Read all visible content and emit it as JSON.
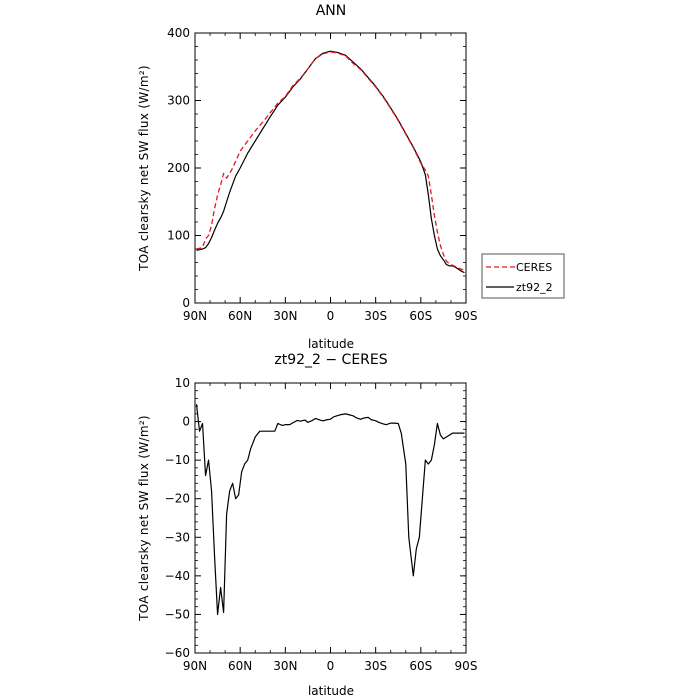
{
  "chart_data": [
    {
      "type": "line",
      "title": "ANN",
      "xlabel": "latitude",
      "ylabel": "TOA clearsky net SW flux (W/m²)",
      "x_tick_labels": [
        "90N",
        "60N",
        "30N",
        "0",
        "30S",
        "60S",
        "90S"
      ],
      "x_tick_values": [
        90,
        60,
        30,
        0,
        -30,
        -60,
        -90
      ],
      "y_tick_labels": [
        "0",
        "100",
        "200",
        "300",
        "400"
      ],
      "xlim": [
        90,
        -90
      ],
      "ylim": [
        0,
        400
      ],
      "legend_position": "right",
      "series": [
        {
          "name": "CERES",
          "color": "#e8161c",
          "style": "dashed",
          "x": [
            89,
            87,
            85,
            83,
            81,
            79,
            77,
            75,
            73,
            71,
            69,
            67,
            65,
            63,
            60,
            55,
            50,
            45,
            40,
            35,
            30,
            25,
            20,
            15,
            10,
            5,
            0,
            -5,
            -10,
            -15,
            -20,
            -25,
            -30,
            -35,
            -40,
            -45,
            -50,
            -55,
            -60,
            -63,
            -65,
            -67,
            -69,
            -71,
            -73,
            -75,
            -77,
            -79,
            -81,
            -83,
            -85,
            -87,
            -89
          ],
          "y": [
            80,
            81,
            82,
            95,
            100,
            115,
            140,
            160,
            175,
            192,
            185,
            192,
            200,
            210,
            225,
            240,
            255,
            268,
            282,
            296,
            306,
            322,
            333,
            347,
            362,
            369,
            372,
            370,
            366,
            355,
            346,
            333,
            320,
            305,
            288,
            270,
            250,
            230,
            207,
            197,
            188,
            160,
            130,
            105,
            85,
            72,
            62,
            58,
            56,
            54,
            52,
            50,
            48
          ]
        },
        {
          "name": "zt92_2",
          "color": "#000000",
          "style": "solid",
          "x": [
            89,
            87,
            85,
            83,
            81,
            79,
            77,
            75,
            73,
            71,
            69,
            67,
            65,
            63,
            60,
            55,
            50,
            45,
            40,
            35,
            30,
            25,
            20,
            15,
            10,
            5,
            0,
            -5,
            -10,
            -15,
            -20,
            -25,
            -30,
            -35,
            -40,
            -45,
            -50,
            -55,
            -60,
            -63,
            -65,
            -67,
            -69,
            -71,
            -73,
            -75,
            -77,
            -79,
            -81,
            -83,
            -85,
            -87,
            -89
          ],
          "y": [
            78,
            79,
            80,
            82,
            88,
            97,
            108,
            118,
            126,
            136,
            150,
            164,
            176,
            188,
            200,
            222,
            240,
            258,
            276,
            293,
            305,
            320,
            332,
            347,
            362,
            370,
            373,
            371,
            367,
            357,
            347,
            334,
            321,
            306,
            289,
            271,
            251,
            231,
            209,
            190,
            160,
            125,
            100,
            80,
            70,
            64,
            57,
            55,
            55,
            53,
            50,
            47,
            45
          ]
        }
      ]
    },
    {
      "type": "line",
      "title": "zt92_2 − CERES",
      "xlabel": "latitude",
      "ylabel": "TOA clearsky net SW flux (W/m²)",
      "x_tick_labels": [
        "90N",
        "60N",
        "30N",
        "0",
        "30S",
        "60S",
        "90S"
      ],
      "x_tick_values": [
        90,
        60,
        30,
        0,
        -30,
        -60,
        -90
      ],
      "y_tick_labels": [
        "10",
        "0",
        "−10",
        "−20",
        "−30",
        "−40",
        "−50",
        "−60"
      ],
      "xlim": [
        90,
        -90
      ],
      "ylim": [
        -60,
        10
      ],
      "series": [
        {
          "name": "zt92_2 − CERES",
          "color": "#000000",
          "style": "solid",
          "x": [
            89,
            87,
            85,
            83,
            81,
            79,
            77,
            75,
            73,
            71,
            69,
            67,
            65,
            63,
            61,
            59,
            57,
            55,
            53,
            50,
            47,
            45,
            42,
            40,
            37,
            35,
            32,
            30,
            27,
            25,
            22,
            20,
            17,
            15,
            12,
            10,
            7,
            5,
            2,
            0,
            -2,
            -5,
            -7,
            -10,
            -12,
            -15,
            -17,
            -20,
            -22,
            -25,
            -27,
            -30,
            -32,
            -35,
            -37,
            -40,
            -42,
            -45,
            -47,
            -50,
            -52,
            -55,
            -57,
            -59,
            -61,
            -63,
            -65,
            -67,
            -69,
            -71,
            -73,
            -75,
            -77,
            -79,
            -81,
            -83,
            -85,
            -87,
            -89
          ],
          "y": [
            4.5,
            -2.5,
            -0.5,
            -14,
            -10,
            -18,
            -35,
            -50,
            -43,
            -49.5,
            -24,
            -18,
            -16,
            -20,
            -19,
            -13,
            -11,
            -10,
            -7,
            -4,
            -2.5,
            -2.5,
            -2.5,
            -2.5,
            -2.5,
            -0.5,
            -1,
            -0.8,
            -0.8,
            -0.3,
            0.3,
            0.1,
            0.4,
            -0.2,
            0.3,
            0.8,
            0.4,
            0.2,
            0.5,
            0.6,
            1.2,
            1.6,
            1.8,
            2.0,
            1.8,
            1.5,
            1.0,
            0.6,
            0.9,
            1.1,
            0.5,
            0.2,
            -0.2,
            -0.6,
            -0.8,
            -0.4,
            -0.4,
            -0.5,
            -3,
            -11,
            -30,
            -40,
            -33,
            -30,
            -20,
            -10,
            -11,
            -10,
            -6,
            -0.5,
            -3.5,
            -4.5,
            -4,
            -3.5,
            -3,
            -3,
            -3,
            -3,
            -3
          ]
        }
      ]
    }
  ]
}
